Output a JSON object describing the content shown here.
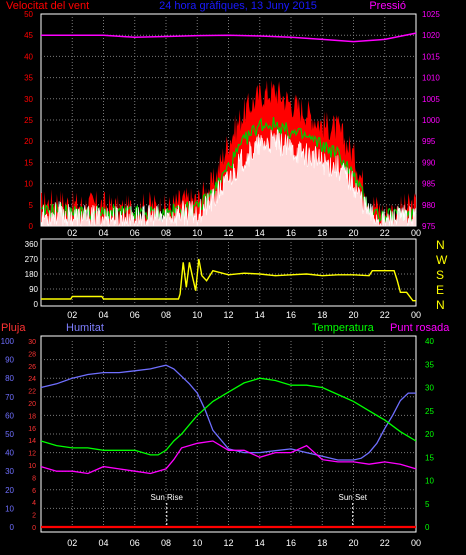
{
  "header": {
    "wind_title": "Velocitat del vent",
    "center_title": "24 hora gràfiques, 13 Juny 2015",
    "pressure_title": "Pressió"
  },
  "labels": {
    "pluja": "Pluja",
    "humitat": "Humitat",
    "temperatura": "Temperatura",
    "punt_rosada": "Punt rosada",
    "sun_rise": "Sun Rise",
    "sun_set": "Sun Set"
  },
  "colors": {
    "wind_gust": "#ff0000",
    "wind_avg": "#00cc00",
    "wind_speed": "#ffffff",
    "pressure": "#ff00ff",
    "direction": "#ffff00",
    "humidity": "#6f6fff",
    "temperature": "#00ff00",
    "dew_point": "#ff00ff",
    "rain": "#ff0000",
    "x_ticks": "#ffffff"
  },
  "chart_data": [
    {
      "type": "area",
      "title": "Velocitat del vent",
      "secondary_title": "Pressió",
      "x_ticks": [
        "02",
        "04",
        "06",
        "08",
        "10",
        "12",
        "14",
        "16",
        "18",
        "20",
        "22",
        "00"
      ],
      "y_left_ticks": [
        0,
        5,
        10,
        15,
        20,
        25,
        30,
        35,
        40,
        45,
        50
      ],
      "ylim": [
        0,
        50
      ],
      "y_right_ticks": [
        975,
        980,
        985,
        990,
        995,
        1000,
        1005,
        1010,
        1015,
        1020,
        1025
      ],
      "y2lim": [
        975,
        1025
      ],
      "grid": true,
      "series": [
        {
          "role": "gust",
          "x": [
            0,
            1,
            2,
            3,
            4,
            5,
            6,
            7,
            8,
            9,
            10,
            11,
            12,
            13,
            14,
            15,
            16,
            17,
            18,
            19,
            20,
            21,
            22,
            23,
            24
          ],
          "values": [
            5,
            6,
            5,
            5,
            5,
            4,
            4,
            5,
            4,
            6,
            6,
            10,
            20,
            27,
            31,
            32,
            29,
            27,
            24,
            23,
            17,
            6,
            3,
            4,
            5
          ]
        },
        {
          "role": "average",
          "x": [
            0,
            1,
            2,
            3,
            4,
            5,
            6,
            7,
            8,
            9,
            10,
            11,
            12,
            13,
            14,
            15,
            16,
            17,
            18,
            19,
            20,
            21,
            22,
            23,
            24
          ],
          "values": [
            3,
            4,
            3,
            3,
            3,
            3,
            3,
            3,
            3,
            4,
            4,
            8,
            14,
            20,
            24,
            24,
            22,
            21,
            19,
            17,
            12,
            4,
            2,
            3,
            3
          ]
        },
        {
          "role": "speed",
          "x": [
            0,
            1,
            2,
            3,
            4,
            5,
            6,
            7,
            8,
            9,
            10,
            11,
            12,
            13,
            14,
            15,
            16,
            17,
            18,
            19,
            20,
            21,
            22,
            23,
            24
          ],
          "values": [
            2,
            3,
            2,
            2,
            2,
            2,
            2,
            2,
            2,
            3,
            3,
            6,
            11,
            16,
            19,
            20,
            18,
            17,
            15,
            14,
            10,
            3,
            1,
            2,
            2
          ]
        },
        {
          "role": "pressure",
          "x": [
            0,
            2,
            4,
            6,
            8,
            10,
            12,
            14,
            16,
            18,
            20,
            22,
            24
          ],
          "values": [
            1020,
            1020,
            1020,
            1019.5,
            1019.7,
            1019.9,
            1020,
            1019.8,
            1019.5,
            1019,
            1018.5,
            1019,
            1020.5
          ]
        }
      ]
    },
    {
      "type": "line",
      "x_ticks": [
        "02",
        "04",
        "06",
        "08",
        "10",
        "12",
        "14",
        "16",
        "18",
        "20",
        "22",
        "00"
      ],
      "y_ticks": [
        0,
        90,
        180,
        270,
        360
      ],
      "ylim": [
        0,
        360
      ],
      "right_labels": [
        "N",
        "W",
        "S",
        "E",
        "N"
      ],
      "grid": true,
      "series": [
        {
          "role": "direction",
          "x": [
            0,
            1.9,
            2.0,
            3.9,
            4.0,
            5.9,
            6.0,
            8.8,
            8.9,
            9.1,
            9.3,
            9.5,
            9.7,
            9.9,
            10.1,
            10.3,
            10.6,
            11,
            12,
            13,
            14,
            15,
            16,
            17,
            18,
            19,
            20,
            21,
            21.2,
            22,
            22.6,
            22.8,
            23,
            23.4,
            23.8,
            24
          ],
          "values": [
            30,
            30,
            45,
            45,
            30,
            30,
            30,
            30,
            60,
            250,
            100,
            250,
            160,
            80,
            270,
            170,
            140,
            200,
            175,
            185,
            180,
            170,
            175,
            180,
            170,
            175,
            175,
            170,
            200,
            200,
            200,
            140,
            70,
            70,
            20,
            20
          ]
        }
      ]
    },
    {
      "type": "line",
      "x_ticks": [
        "02",
        "04",
        "06",
        "08",
        "10",
        "12",
        "14",
        "16",
        "18",
        "20",
        "22",
        "00"
      ],
      "y_pluja_ticks": [
        0,
        2,
        4,
        6,
        8,
        10,
        12,
        14,
        16,
        18,
        20,
        22,
        24,
        26,
        28,
        30
      ],
      "y_humitat_ticks": [
        0,
        10,
        20,
        30,
        40,
        50,
        60,
        70,
        80,
        90,
        100
      ],
      "y_temp_ticks": [
        0,
        5,
        10,
        15,
        20,
        25,
        30,
        35,
        40
      ],
      "grid": true,
      "series": [
        {
          "role": "rain",
          "axis": "pluja",
          "x": [
            0,
            24
          ],
          "values": [
            0,
            0
          ]
        },
        {
          "role": "humidity",
          "axis": "humitat",
          "x": [
            0,
            1,
            2,
            3,
            4,
            5,
            6,
            7,
            7.5,
            8,
            8.5,
            9,
            9.5,
            10,
            10.5,
            11,
            12,
            13,
            14,
            15,
            16,
            17,
            18,
            19,
            20,
            20.5,
            21,
            21.5,
            22,
            22.5,
            23,
            23.5,
            24
          ],
          "values": [
            75,
            77,
            80,
            82,
            83,
            83,
            84,
            85,
            86,
            87,
            85,
            81,
            77,
            72,
            63,
            52,
            42,
            40,
            40,
            41,
            42,
            40,
            38,
            36,
            36,
            37,
            40,
            45,
            53,
            60,
            68,
            72,
            72
          ]
        },
        {
          "role": "temperature",
          "axis": "temp",
          "x": [
            0,
            1,
            2,
            3,
            4,
            5,
            6,
            7,
            7.5,
            8,
            8.5,
            9,
            9.5,
            10,
            11,
            12,
            13,
            14,
            15,
            16,
            17,
            18,
            19,
            20,
            21,
            22,
            23,
            24
          ],
          "values": [
            18.5,
            17.5,
            17,
            17,
            16.5,
            16.5,
            16.5,
            15.5,
            15.5,
            16.5,
            18.5,
            20,
            22,
            24,
            27,
            29,
            31,
            32,
            31.5,
            30.5,
            30.5,
            30,
            28.5,
            27,
            25,
            23,
            20.5,
            18.5
          ]
        },
        {
          "role": "dew_point",
          "axis": "temp",
          "x": [
            0,
            1,
            2,
            3,
            4,
            5,
            6,
            7,
            8,
            8.5,
            9,
            10,
            11,
            12,
            13,
            14,
            15,
            16,
            17,
            18,
            19,
            20,
            21,
            22,
            23,
            24
          ],
          "values": [
            13,
            12,
            12,
            11.5,
            13,
            12.5,
            12,
            11.5,
            12.5,
            14.5,
            17,
            18,
            18.5,
            16.5,
            16.5,
            15,
            16,
            16,
            17.5,
            14.5,
            14,
            14,
            13.5,
            14,
            13.5,
            12.5
          ]
        }
      ],
      "annotations": [
        {
          "label": "Sun Rise",
          "x": 8.05
        },
        {
          "label": "Sun Set",
          "x": 19.95
        }
      ]
    }
  ]
}
